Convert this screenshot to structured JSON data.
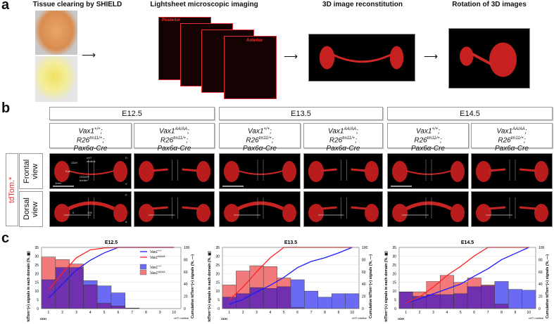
{
  "panel_a": {
    "label": "a",
    "steps": [
      {
        "title": "Tissue clearing by SHIELD"
      },
      {
        "title": "Lightsheet microscopic imaging",
        "posterior": "Posterior",
        "anterior": "Anterior"
      },
      {
        "title": "3D image reconstitution"
      },
      {
        "title": "Rotation of 3D images"
      }
    ]
  },
  "panel_b": {
    "label": "b",
    "stages": [
      "E12.5",
      "E13.5",
      "E14.5"
    ],
    "genotypes": [
      {
        "l1": "Vax1",
        "s1": "+/+",
        "l2": "R26",
        "s2": "tm11/+",
        "l3": "Pax6α-Cre"
      },
      {
        "l1": "Vax1",
        "s1": "AA/AA",
        "l2": "R26",
        "s2": "tm11/+",
        "l3": "Pax6α-Cre"
      },
      {
        "l1": "Vax1",
        "s1": "+/+",
        "l2": "R26",
        "s2": "tm11/+",
        "l3": "Pax6α-Cre"
      },
      {
        "l1": "Vax1",
        "s1": "AA/AA",
        "l2": "R26",
        "s2": "tm11/+",
        "l3": "Pax6α-Cre"
      },
      {
        "l1": "Vax1",
        "s1": "+/+",
        "l2": "R26",
        "s2": "tm11/+",
        "l3": "Pax6α-Cre"
      },
      {
        "l1": "Vax1",
        "s1": "AA/AA",
        "l2": "R26",
        "s2": "tm11/+",
        "l3": "Pax6α-Cre"
      }
    ],
    "row_group": "tdTom.*",
    "rows": [
      "Frontal view",
      "Dorsal view"
    ],
    "annotations": {
      "odh": "ODH",
      "vht": "vHT midline",
      "eye": "Eye",
      "osvht": "OS/vHT border",
      "scale": "1mm",
      "d": "D",
      "v": "V",
      "p": "P",
      "a": "A",
      "num0": "0",
      "num100": "100"
    }
  },
  "panel_c": {
    "label": "c"
  },
  "chart_data": [
    {
      "type": "bar",
      "title": "E12.5",
      "ylabel": "tdTom⁺(+) signals in each domain (%, ▦)",
      "y2label": "Cumulative tdTom⁺(+) signals (%, —)",
      "ylim": [
        0,
        35
      ],
      "y2lim": [
        0,
        100
      ],
      "categories": [
        "1",
        "2",
        "3",
        "4",
        "5",
        "6",
        "7",
        "8",
        "9",
        "10"
      ],
      "x_start": "ODH",
      "x_end": "vHT midline",
      "series": [
        {
          "name": "Vax1+/+",
          "kind": "bar",
          "color": "#6a6af5",
          "values": [
            16.5,
            23.5,
            23.5,
            16,
            13,
            9,
            0.3,
            0,
            0,
            0
          ]
        },
        {
          "name": "Vax1AA/AA",
          "kind": "bar",
          "color": "#f37a7a",
          "values": [
            29.5,
            28,
            25.5,
            13.5,
            3,
            1.5,
            0.3,
            0,
            0,
            0
          ]
        },
        {
          "name": "Vax1+/+",
          "kind": "line",
          "color": "#1a1aff",
          "values": [
            17,
            40,
            63,
            79,
            91,
            100,
            100,
            100,
            100,
            100
          ]
        },
        {
          "name": "Vax1AA/AA",
          "kind": "line",
          "color": "#ff2020",
          "values": [
            30,
            58,
            83,
            96,
            99,
            100,
            100,
            100,
            100,
            100
          ]
        }
      ],
      "legend": {
        "placement": "top-right",
        "items": [
          {
            "label": "Vax1",
            "sup": "+/+",
            "kind": "line",
            "color": "#1a1aff"
          },
          {
            "label": "Vax1",
            "sup": "AA/AA",
            "kind": "line",
            "color": "#ff2020"
          },
          {
            "label": "Vax1",
            "sup": "+/+",
            "kind": "box",
            "color": "#6a6af5"
          },
          {
            "label": "Vax1",
            "sup": "AA/AA",
            "kind": "box",
            "color": "#f37a7a"
          }
        ]
      }
    },
    {
      "type": "bar",
      "title": "E13.5",
      "ylabel": "tdTom⁺(+) signals in each domain (%, ▦)",
      "y2label": "Cumulative tdTom⁺(+) signals (%, —)",
      "ylim": [
        0,
        35
      ],
      "y2lim": [
        0,
        100
      ],
      "categories": [
        "1",
        "2",
        "3",
        "4",
        "5",
        "6",
        "7",
        "8",
        "9",
        "10"
      ],
      "x_start": "ODH",
      "x_end": "vHT midline",
      "series": [
        {
          "name": "Vax1+/+",
          "kind": "bar",
          "color": "#6a6af5",
          "values": [
            6.5,
            8.5,
            12,
            11.5,
            12.5,
            16.5,
            10,
            6.5,
            8.5,
            8.5
          ]
        },
        {
          "name": "Vax1AA/AA",
          "kind": "bar",
          "color": "#f37a7a",
          "values": [
            13.5,
            21.5,
            24.5,
            24,
            17.5,
            0.5,
            0,
            0,
            0,
            0
          ]
        },
        {
          "name": "Vax1+/+",
          "kind": "line",
          "color": "#1a1aff",
          "values": [
            7,
            15,
            27,
            38,
            51,
            67,
            77,
            83,
            91,
            100
          ]
        },
        {
          "name": "Vax1AA/AA",
          "kind": "line",
          "color": "#ff2020",
          "values": [
            14,
            35,
            60,
            83,
            100,
            100,
            100,
            100,
            100,
            100
          ]
        }
      ]
    },
    {
      "type": "bar",
      "title": "E14.5",
      "ylabel": "tdTom⁺(+) signals in each domain (%, ▦)",
      "y2label": "Cumulative tdTom⁺(+) signals (%, —)",
      "ylim": [
        0,
        35
      ],
      "y2lim": [
        0,
        100
      ],
      "categories": [
        "1",
        "2",
        "3",
        "4",
        "5",
        "6",
        "7",
        "8",
        "9",
        "10"
      ],
      "x_start": "ODH",
      "x_end": "vHT midline",
      "series": [
        {
          "name": "Vax1+/+",
          "kind": "bar",
          "color": "#6a6af5",
          "values": [
            9.5,
            7,
            8,
            8,
            8.5,
            12.5,
            13,
            15.5,
            11,
            10.5
          ]
        },
        {
          "name": "Vax1AA/AA",
          "kind": "bar",
          "color": "#f37a7a",
          "values": [
            9.5,
            9.5,
            15.5,
            19,
            15,
            17.5,
            13.5,
            2.5,
            0,
            0
          ]
        },
        {
          "name": "Vax1+/+",
          "kind": "line",
          "color": "#1a1aff",
          "values": [
            9,
            16,
            24,
            32,
            40,
            53,
            65,
            80,
            90,
            100
          ]
        },
        {
          "name": "Vax1AA/AA",
          "kind": "line",
          "color": "#ff2020",
          "values": [
            9,
            19,
            35,
            54,
            69,
            86,
            100,
            100,
            100,
            100
          ]
        }
      ]
    }
  ]
}
